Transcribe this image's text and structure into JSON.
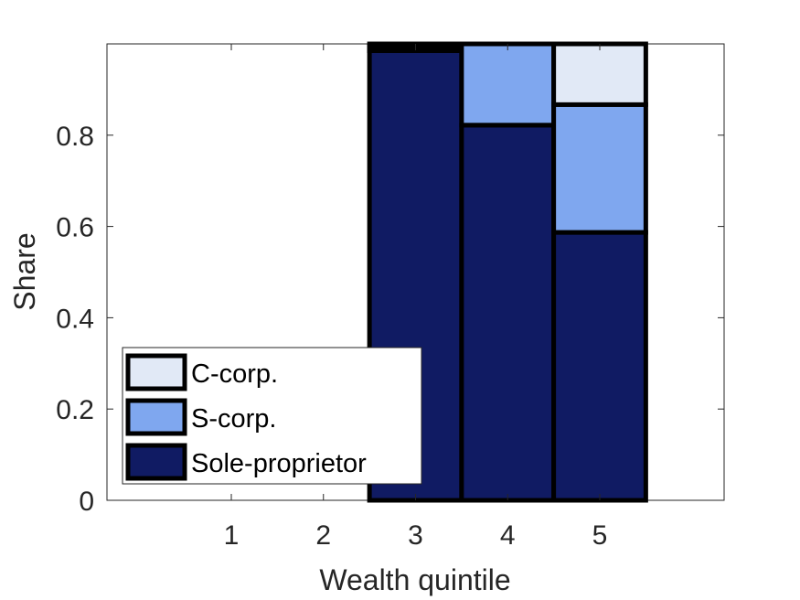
{
  "chart_data": {
    "type": "bar",
    "stacked": true,
    "categories": [
      "1",
      "2",
      "3",
      "4",
      "5"
    ],
    "series": [
      {
        "name": "Sole-proprietor",
        "color": "#101B63",
        "values": [
          0,
          0,
          0.985,
          0.822,
          0.587
        ]
      },
      {
        "name": "S-corp.",
        "color": "#7FA7EF",
        "values": [
          0,
          0,
          0.01,
          0.178,
          0.28
        ]
      },
      {
        "name": "C-corp.",
        "color": "#E1E9F6",
        "values": [
          0,
          0,
          0.005,
          0.0,
          0.133
        ]
      }
    ],
    "xlabel": "Wealth quintile",
    "ylabel": "Share",
    "ylim": [
      0,
      1
    ],
    "yticks": [
      "0",
      "0.2",
      "0.4",
      "0.6",
      "0.8"
    ],
    "grid": false,
    "legend_position": "bottom-left"
  }
}
